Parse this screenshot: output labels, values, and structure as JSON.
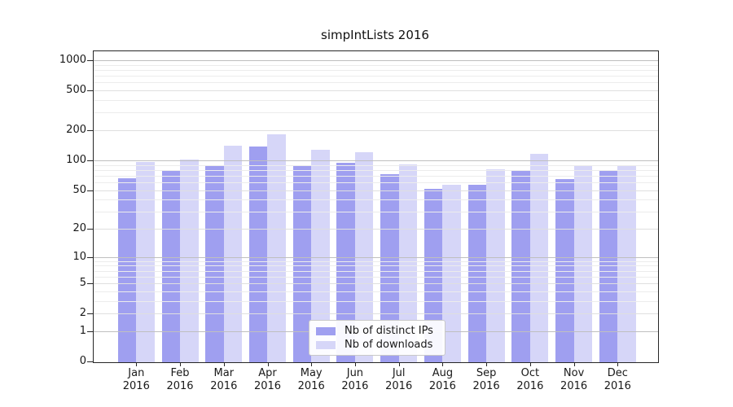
{
  "chart_data": {
    "type": "bar",
    "title": "simpIntLists 2016",
    "categories": [
      "Jan 2016",
      "Feb 2016",
      "Mar 2016",
      "Apr 2016",
      "May 2016",
      "Jun 2016",
      "Jul 2016",
      "Aug 2016",
      "Sep 2016",
      "Oct 2016",
      "Nov 2016",
      "Dec 2016"
    ],
    "series": [
      {
        "name": "Nb of distinct IPs",
        "color": "#9f9ff0",
        "values": [
          66,
          80,
          87,
          138,
          88,
          94,
          72,
          51,
          57,
          78,
          65,
          80
        ]
      },
      {
        "name": "Nb of downloads",
        "color": "#d6d6f8",
        "values": [
          96,
          102,
          140,
          182,
          128,
          120,
          90,
          57,
          81,
          115,
          89,
          88
        ]
      }
    ],
    "y_scale": "log10(value+1)",
    "y_ticks": [
      0,
      1,
      2,
      5,
      10,
      20,
      50,
      100,
      200,
      500,
      1000
    ],
    "ylim": [
      0,
      1230
    ],
    "xlabel": "",
    "ylabel": "",
    "grid": "major-and-minor, drawn above bars",
    "grid_decade_color": "#bfbfbf",
    "grid_major_color": "#dfdfdf",
    "grid_minor_color": "#ececec",
    "legend_position": "lower center"
  }
}
